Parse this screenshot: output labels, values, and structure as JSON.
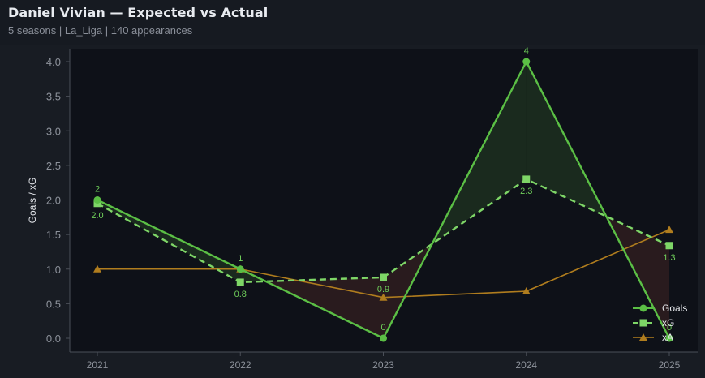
{
  "header": {
    "title": "Daniel Vivian — Expected vs Actual",
    "subtitle": "5 seasons | La_Liga | 140 appearances"
  },
  "colors": {
    "goals": "#5bbf45",
    "xg": "#7ed667",
    "xa": "#b07d1e",
    "over_fill": "#1b2c1f",
    "under_fill": "#2b1c1f",
    "plot_bg": "#0e1118",
    "page_bg": "#181c23"
  },
  "chart_data": {
    "type": "line",
    "title": "Daniel Vivian — Expected vs Actual",
    "subtitle": "5 seasons | La_Liga | 140 appearances",
    "xlabel": "",
    "ylabel": "Goals / xG",
    "categories": [
      "2021",
      "2022",
      "2023",
      "2024",
      "2025"
    ],
    "x": [
      2021,
      2022,
      2023,
      2024,
      2025
    ],
    "ylim": [
      -0.2,
      4.2
    ],
    "yticks": [
      0.0,
      0.5,
      1.0,
      1.5,
      2.0,
      2.5,
      3.0,
      3.5,
      4.0
    ],
    "ytick_labels": [
      "0.0",
      "0.5",
      "1.0",
      "1.5",
      "2.0",
      "2.5",
      "3.0",
      "3.5",
      "4.0"
    ],
    "grid": false,
    "legend_position": "lower right",
    "series": [
      {
        "name": "Goals",
        "values": [
          2,
          1,
          0,
          4,
          0
        ],
        "marker": "circle",
        "style": "solid",
        "color": "#5bbf45",
        "labels": [
          "2",
          "1",
          "0",
          "4",
          "0"
        ]
      },
      {
        "name": "xG",
        "values": [
          1.95,
          0.81,
          0.88,
          2.3,
          1.34
        ],
        "marker": "square",
        "style": "dashed",
        "color": "#7ed667",
        "labels": [
          "2.0",
          "0.8",
          "0.9",
          "2.3",
          "1.3"
        ]
      },
      {
        "name": "xA",
        "values": [
          1.0,
          1.0,
          0.59,
          0.68,
          1.57
        ],
        "marker": "triangle",
        "style": "solid",
        "color": "#b07d1e"
      }
    ],
    "fill_between": {
      "between": [
        "Goals",
        "xG"
      ],
      "over_color": "#1b2c1f",
      "under_color": "#2b1c1f"
    }
  },
  "legend": {
    "items": [
      {
        "label": "Goals"
      },
      {
        "label": "xG"
      },
      {
        "label": "xA"
      }
    ]
  }
}
